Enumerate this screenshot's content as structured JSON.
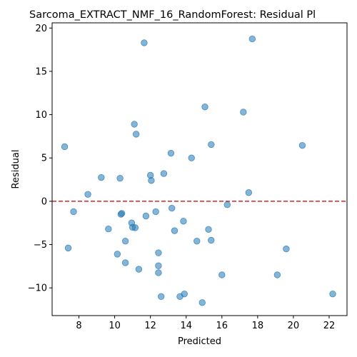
{
  "chart_data": {
    "type": "scatter",
    "title": "Sarcoma_EXTRACT_NMF_16_RandomForest: Residual Pl",
    "xlabel": "Predicted",
    "ylabel": "Residual",
    "xlim": [
      6.5,
      23.0
    ],
    "ylim": [
      -13.2,
      20.6
    ],
    "xticks": [
      8,
      10,
      12,
      14,
      16,
      18,
      20,
      22
    ],
    "yticks": [
      -10,
      -5,
      0,
      5,
      10,
      15,
      20
    ],
    "grid": false,
    "reference_line": {
      "y": 0,
      "color": "#d62728",
      "style": "dashed"
    },
    "point_color": "#1f77b4",
    "points": [
      [
        7.2,
        6.3
      ],
      [
        7.4,
        -5.4
      ],
      [
        7.7,
        -1.2
      ],
      [
        8.5,
        0.8
      ],
      [
        9.25,
        2.75
      ],
      [
        9.65,
        -3.2
      ],
      [
        10.15,
        -6.1
      ],
      [
        10.3,
        2.65
      ],
      [
        10.35,
        -1.5
      ],
      [
        10.4,
        -1.4
      ],
      [
        10.6,
        -4.6
      ],
      [
        10.6,
        -7.1
      ],
      [
        10.95,
        -2.5
      ],
      [
        11.0,
        -3.0
      ],
      [
        11.1,
        8.9
      ],
      [
        11.15,
        -3.05
      ],
      [
        11.2,
        7.75
      ],
      [
        11.35,
        -7.85
      ],
      [
        11.65,
        18.3
      ],
      [
        11.75,
        -1.7
      ],
      [
        12.0,
        3.0
      ],
      [
        12.05,
        2.4
      ],
      [
        12.3,
        -1.2
      ],
      [
        12.45,
        -5.95
      ],
      [
        12.45,
        -7.45
      ],
      [
        12.45,
        -8.25
      ],
      [
        12.6,
        -11.0
      ],
      [
        12.75,
        3.2
      ],
      [
        13.15,
        5.55
      ],
      [
        13.2,
        -0.8
      ],
      [
        13.35,
        -3.4
      ],
      [
        13.65,
        -11.0
      ],
      [
        13.85,
        -2.3
      ],
      [
        13.9,
        -10.7
      ],
      [
        14.3,
        5.0
      ],
      [
        14.6,
        -4.6
      ],
      [
        14.9,
        -11.7
      ],
      [
        15.05,
        10.9
      ],
      [
        15.25,
        -3.25
      ],
      [
        15.4,
        6.55
      ],
      [
        15.4,
        -4.5
      ],
      [
        16.0,
        -8.5
      ],
      [
        16.3,
        -0.4
      ],
      [
        17.2,
        10.3
      ],
      [
        17.5,
        1.0
      ],
      [
        17.7,
        18.75
      ],
      [
        19.1,
        -8.5
      ],
      [
        19.6,
        -5.5
      ],
      [
        20.5,
        6.45
      ],
      [
        22.2,
        -10.7
      ]
    ]
  }
}
